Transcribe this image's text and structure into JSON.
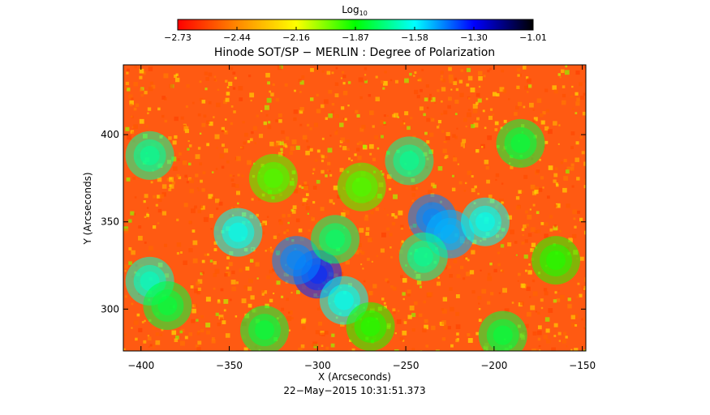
{
  "chart_data": {
    "type": "heatmap",
    "title": "Hinode SOT/SP − MERLIN : Degree of Polarization",
    "colorbar": {
      "label": "Log",
      "label_subscript": "10",
      "range": [
        -2.73,
        -1.01
      ],
      "tick_labels": [
        "−2.73",
        "−2.44",
        "−2.16",
        "−1.87",
        "−1.58",
        "−1.30",
        "−1.01"
      ],
      "colormap": [
        "#ff0000",
        "#ff8800",
        "#ffff00",
        "#00ff00",
        "#00ffff",
        "#0000ff",
        "#000000"
      ]
    },
    "xlabel": "X (Arcseconds)",
    "ylabel": "Y (Arcseconds)",
    "xlim": [
      -410,
      -148
    ],
    "ylim": [
      276,
      440
    ],
    "x_ticks": [
      -400,
      -350,
      -300,
      -250,
      -200,
      -150
    ],
    "x_tick_labels": [
      "−400",
      "−350",
      "−300",
      "−250",
      "−200",
      "−150"
    ],
    "y_ticks": [
      300,
      350,
      400
    ],
    "y_tick_labels": [
      "300",
      "350",
      "400"
    ],
    "timestamp": "22−May−2015 10:31:51.373",
    "features": [
      {
        "x": -300,
        "y": 320,
        "value": -1.35
      },
      {
        "x": -312,
        "y": 328,
        "value": -1.45
      },
      {
        "x": -345,
        "y": 344,
        "value": -1.6
      },
      {
        "x": -395,
        "y": 316,
        "value": -1.65
      },
      {
        "x": -385,
        "y": 302,
        "value": -1.8
      },
      {
        "x": -330,
        "y": 288,
        "value": -1.8
      },
      {
        "x": -285,
        "y": 305,
        "value": -1.6
      },
      {
        "x": -290,
        "y": 340,
        "value": -1.75
      },
      {
        "x": -235,
        "y": 352,
        "value": -1.45
      },
      {
        "x": -225,
        "y": 343,
        "value": -1.5
      },
      {
        "x": -205,
        "y": 350,
        "value": -1.6
      },
      {
        "x": -240,
        "y": 330,
        "value": -1.7
      },
      {
        "x": -248,
        "y": 385,
        "value": -1.7
      },
      {
        "x": -395,
        "y": 388,
        "value": -1.7
      },
      {
        "x": -325,
        "y": 375,
        "value": -1.95
      },
      {
        "x": -275,
        "y": 370,
        "value": -1.95
      },
      {
        "x": -185,
        "y": 395,
        "value": -1.8
      },
      {
        "x": -195,
        "y": 285,
        "value": -1.8
      },
      {
        "x": -165,
        "y": 328,
        "value": -1.9
      },
      {
        "x": -270,
        "y": 290,
        "value": -1.9
      }
    ]
  }
}
